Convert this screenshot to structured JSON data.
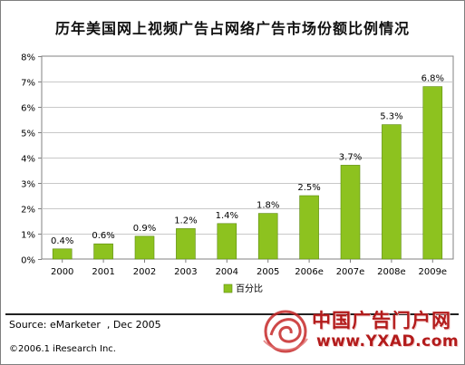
{
  "title": "历年美国网上视频广告占网络广告市场份额比例情况",
  "chart_data": {
    "type": "bar",
    "categories": [
      "2000",
      "2001",
      "2002",
      "2003",
      "2004",
      "2005",
      "2006e",
      "2007e",
      "2008e",
      "2009e"
    ],
    "series": [
      {
        "name": "百分比",
        "values": [
          0.4,
          0.6,
          0.9,
          1.2,
          1.4,
          1.8,
          2.5,
          3.7,
          5.3,
          6.8
        ],
        "labels": [
          "0.4%",
          "0.6%",
          "0.9%",
          "1.2%",
          "1.4%",
          "1.8%",
          "2.5%",
          "3.7%",
          "5.3%",
          "6.8%"
        ]
      }
    ],
    "ylim": [
      0,
      8
    ],
    "yticks": [
      0,
      1,
      2,
      3,
      4,
      5,
      6,
      7,
      8
    ],
    "ytick_labels": [
      "0%",
      "1%",
      "2%",
      "3%",
      "4%",
      "5%",
      "6%",
      "7%",
      "8%"
    ],
    "grid": true,
    "legend_position": "bottom-center",
    "bar_color": "#8dc21f"
  },
  "source": "Source: eMarketer  , Dec 2005",
  "copyright": "©2006.1 iResearch Inc.",
  "watermark": {
    "text_cn": "中国广告门户网",
    "text_en": "www.YXAD.com"
  }
}
